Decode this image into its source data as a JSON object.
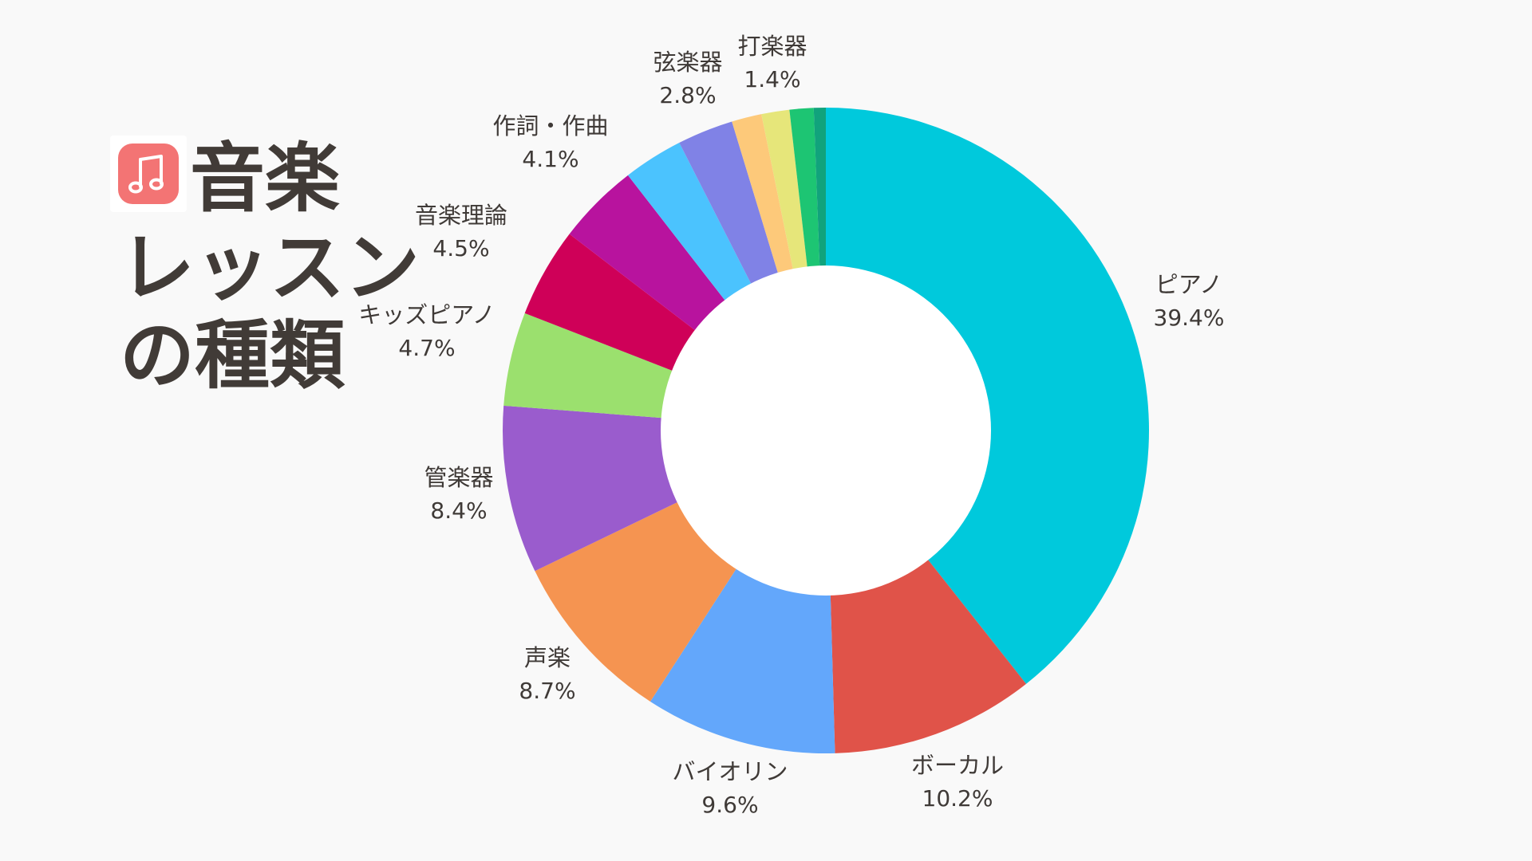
{
  "title": {
    "line1": "音楽",
    "line2": "レッスン",
    "line3": "の種類"
  },
  "icon": {
    "name": "music-note-icon",
    "color": "#f37474"
  },
  "chart_data": {
    "type": "pie",
    "donut": true,
    "slices": [
      {
        "label": "ピアノ",
        "value": 39.4,
        "value_text": "39.4%",
        "color": "#00c9dc"
      },
      {
        "label": "ボーカル",
        "value": 10.2,
        "value_text": "10.2%",
        "color": "#e05349"
      },
      {
        "label": "バイオリン",
        "value": 9.6,
        "value_text": "9.6%",
        "color": "#63a7fb"
      },
      {
        "label": "声楽",
        "value": 8.7,
        "value_text": "8.7%",
        "color": "#f59451"
      },
      {
        "label": "管楽器",
        "value": 8.4,
        "value_text": "8.4%",
        "color": "#9a5ccd"
      },
      {
        "label": "キッズピアノ",
        "value": 4.7,
        "value_text": "4.7%",
        "color": "#9be06e"
      },
      {
        "label": "音楽理論",
        "value": 4.5,
        "value_text": "4.5%",
        "color": "#cf0058"
      },
      {
        "label": "作詞・作曲",
        "value": 4.1,
        "value_text": "4.1%",
        "color": "#b8139e"
      },
      {
        "label": "",
        "value": 3.0,
        "value_text": "",
        "color": "#4bc3fe"
      },
      {
        "label": "弦楽器",
        "value": 2.8,
        "value_text": "2.8%",
        "color": "#8082e6"
      },
      {
        "label": "",
        "value": 1.5,
        "value_text": "",
        "color": "#fdc97a"
      },
      {
        "label": "打楽器",
        "value": 1.4,
        "value_text": "1.4%",
        "color": "#e6e67a"
      },
      {
        "label": "",
        "value": 1.2,
        "value_text": "",
        "color": "#1dc573"
      },
      {
        "label": "",
        "value": 0.6,
        "value_text": "",
        "color": "#11a37c"
      }
    ]
  }
}
